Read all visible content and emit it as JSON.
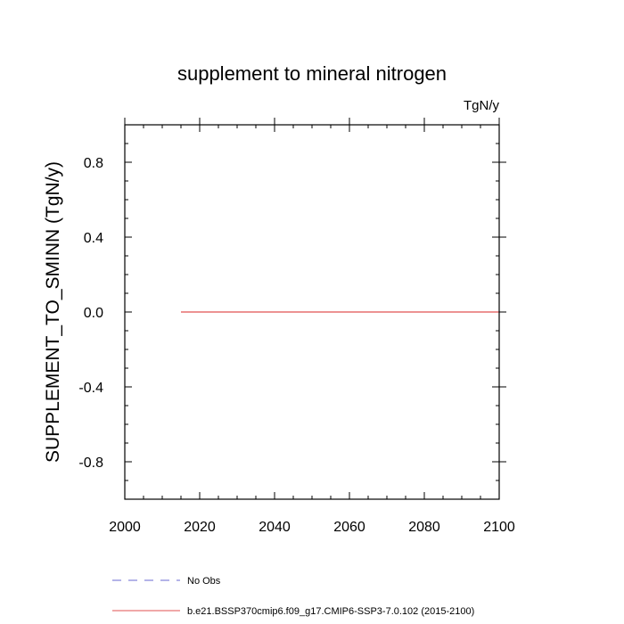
{
  "chart_data": {
    "type": "line",
    "title": "supplement to mineral nitrogen",
    "units_label": "TgN/y",
    "ylabel": "SUPPLEMENT_TO_SMINN  (TgN/y)",
    "xlabel": "",
    "xlim": [
      2000,
      2100
    ],
    "ylim": [
      -1.0,
      1.0
    ],
    "x_ticks": [
      2000,
      2020,
      2040,
      2060,
      2080,
      2100
    ],
    "x_tick_labels": [
      "2000",
      "2020",
      "2040",
      "2060",
      "2080",
      "2100"
    ],
    "y_ticks": [
      -0.8,
      -0.4,
      0.0,
      0.4,
      0.8
    ],
    "y_tick_labels": [
      "-0.8",
      "-0.4",
      "0.0",
      "0.4",
      "0.8"
    ],
    "grid": false,
    "legend_placement": "bottom-left, below plot",
    "series": [
      {
        "name": "No Obs",
        "color": "#6a6ad0",
        "dash": "dashed",
        "x": [],
        "y": []
      },
      {
        "name": "b.e21.BSSP370cmip6.f09_g17.CMIP6-SSP3-7.0.102 (2015-2100)",
        "color": "#e05050",
        "dash": "solid",
        "x": [
          2015,
          2100
        ],
        "y": [
          0.0,
          0.0
        ]
      }
    ]
  }
}
